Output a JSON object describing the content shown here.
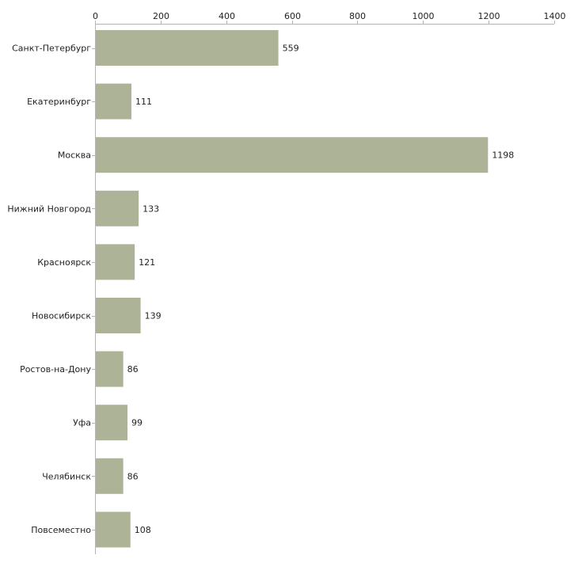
{
  "chart_data": {
    "type": "bar",
    "orientation": "horizontal",
    "title": "",
    "xlabel": "",
    "ylabel": "",
    "xlim": [
      0,
      1400
    ],
    "x_ticks": [
      0,
      200,
      400,
      600,
      800,
      1000,
      1200,
      1400
    ],
    "x_tick_labels": [
      "0",
      "200",
      "400",
      "600",
      "800",
      "1000",
      "1200",
      "1400"
    ],
    "tick_position": "top",
    "grid": false,
    "legend": "none",
    "categories": [
      "Санкт-Петербург",
      "Екатеринбург",
      "Москва",
      "Нижний Новгород",
      "Красноярск",
      "Новосибирск",
      "Ростов-на-Дону",
      "Уфа",
      "Челябинск",
      "Повсеместно"
    ],
    "values": [
      559,
      111,
      1198,
      133,
      121,
      139,
      86,
      99,
      86,
      108
    ],
    "value_labels": [
      "559",
      "111",
      "1198",
      "133",
      "121",
      "139",
      "86",
      "99",
      "86",
      "108"
    ],
    "bar_color": "#adb397",
    "axis_color": "#b5b5b5"
  }
}
